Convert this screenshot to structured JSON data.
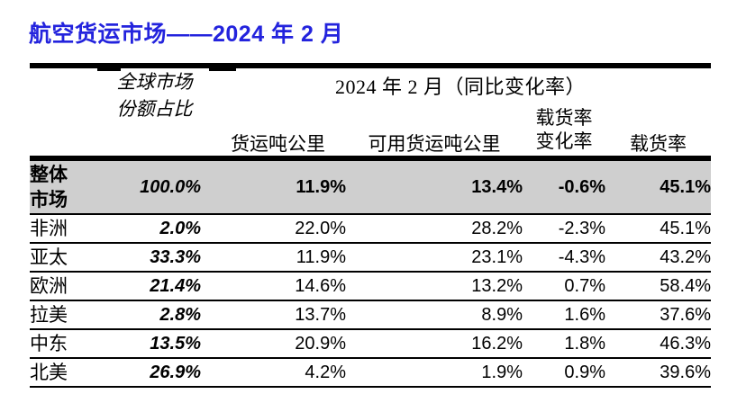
{
  "title": "航空货运市场——2024 年 2 月",
  "colors": {
    "title_blue": "#2323dd",
    "highlight_row_gray": "#cfcfcf",
    "border_black": "#000000"
  },
  "table": {
    "header": {
      "share_line1": "全球市场",
      "share_line2": "份额占比",
      "period": "2024 年 2 月（同比变化率）",
      "col_ctk": "货运吨公里",
      "col_actk": "可用货运吨公里",
      "col_lf_change_line1": "载货率",
      "col_lf_change_line2": "变化率",
      "col_lf": "载货率"
    },
    "overall_row": {
      "label_line1": "整体",
      "label_line2": "市场",
      "share": "100.0%",
      "ctk": "11.9%",
      "actk": "13.4%",
      "lf_change": "-0.6%",
      "lf": "45.1%"
    },
    "rows": [
      {
        "region": "非洲",
        "share": "2.0%",
        "ctk": "22.0%",
        "actk": "28.2%",
        "lf_change": "-2.3%",
        "lf": "45.1%"
      },
      {
        "region": "亚太",
        "share": "33.3%",
        "ctk": "11.9%",
        "actk": "23.1%",
        "lf_change": "-4.3%",
        "lf": "43.2%"
      },
      {
        "region": "欧洲",
        "share": "21.4%",
        "ctk": "14.6%",
        "actk": "13.2%",
        "lf_change": "0.7%",
        "lf": "58.4%"
      },
      {
        "region": "拉美",
        "share": "2.8%",
        "ctk": "13.7%",
        "actk": "8.9%",
        "lf_change": "1.6%",
        "lf": "37.6%"
      },
      {
        "region": "中东",
        "share": "13.5%",
        "ctk": "20.9%",
        "actk": "16.2%",
        "lf_change": "1.8%",
        "lf": "46.3%"
      },
      {
        "region": "北美",
        "share": "26.9%",
        "ctk": "4.2%",
        "actk": "1.9%",
        "lf_change": "0.9%",
        "lf": "39.6%"
      }
    ]
  }
}
